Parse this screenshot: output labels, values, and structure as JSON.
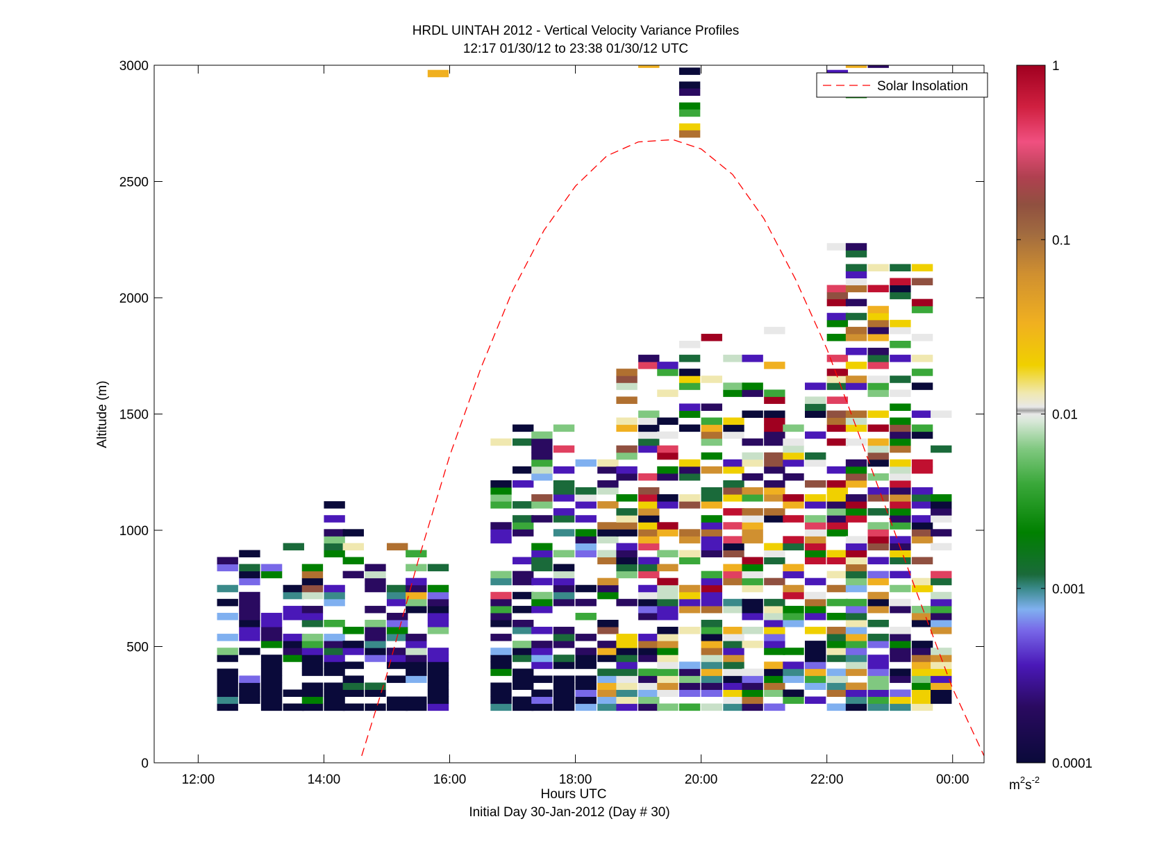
{
  "chart_data": {
    "type": "heatmap",
    "title": "HRDL UINTAH 2012 - Vertical Velocity Variance Profiles",
    "subtitle": "12:17 01/30/12 to 23:38 01/30/12  UTC",
    "xlabel": "Hours UTC",
    "xlabel2": "Initial Day 30-Jan-2012 (Day # 30)",
    "ylabel": "Altitude (m)",
    "xlim": [
      11.3,
      24.5
    ],
    "ylim": [
      0,
      3000
    ],
    "x_ticks": [
      {
        "value": 12,
        "label": "12:00"
      },
      {
        "value": 14,
        "label": "14:00"
      },
      {
        "value": 16,
        "label": "16:00"
      },
      {
        "value": 18,
        "label": "18:00"
      },
      {
        "value": 20,
        "label": "20:00"
      },
      {
        "value": 22,
        "label": "22:00"
      },
      {
        "value": 24,
        "label": "00:00"
      }
    ],
    "y_ticks": [
      {
        "value": 0,
        "label": "0"
      },
      {
        "value": 500,
        "label": "500"
      },
      {
        "value": 1000,
        "label": "1000"
      },
      {
        "value": 1500,
        "label": "1500"
      },
      {
        "value": 2000,
        "label": "2000"
      },
      {
        "value": 2500,
        "label": "2500"
      },
      {
        "value": 3000,
        "label": "3000"
      }
    ],
    "profile_start_hours": [
      12.3,
      12.65,
      13.0,
      13.35,
      13.65,
      14.0,
      14.3,
      14.65,
      15.0,
      15.3,
      15.65,
      16.65,
      17.0,
      17.3,
      17.65,
      18.0,
      18.35,
      18.65,
      19.0,
      19.3,
      19.65,
      20.0,
      20.35,
      20.65,
      21.0,
      21.3,
      21.65,
      22.0,
      22.3,
      22.65,
      23.0,
      23.35,
      23.65
    ],
    "profile_top_altitudes_m": [
      880,
      910,
      910,
      970,
      880,
      1120,
      1040,
      880,
      970,
      1000,
      880,
      1390,
      1450,
      1420,
      1510,
      1300,
      1300,
      1750,
      1750,
      1750,
      1850,
      1870,
      1750,
      1750,
      1850,
      1550,
      1610,
      2260,
      2230,
      2160,
      2140,
      2140,
      1600
    ],
    "range_gate_m": 30,
    "colorbar": {
      "scale": "log",
      "range": [
        0.0001,
        1
      ],
      "tick_labels": [
        "0.0001",
        "0.001",
        "0.01",
        "0.1",
        "1"
      ],
      "unit_base": "m",
      "unit_sup1": "2",
      "unit_mid": "s",
      "unit_sup2": "-2"
    },
    "series": [
      {
        "name": "Solar Insolation",
        "style": "dashed",
        "color": "#ff0000",
        "peak_hour": 19.55,
        "peak_altitude_m": 2680,
        "x": [
          14.6,
          15.0,
          15.5,
          16.0,
          16.5,
          17.0,
          17.5,
          18.0,
          18.5,
          19.0,
          19.55,
          20.0,
          20.5,
          21.0,
          21.5,
          22.0,
          22.5,
          23.0,
          23.5,
          24.0,
          24.5
        ],
        "y": [
          30,
          380,
          870,
          1320,
          1700,
          2030,
          2290,
          2480,
          2610,
          2670,
          2680,
          2640,
          2530,
          2340,
          2080,
          1780,
          1420,
          1050,
          680,
          320,
          30
        ]
      }
    ],
    "legend": {
      "position": "top-right",
      "entries": [
        "Solar Insolation"
      ]
    },
    "colors": {
      "background": "#ffffff",
      "axes": "#000000",
      "insolation_line": "#ff0000",
      "colormap": [
        "#0a0a3a",
        "#2a0a60",
        "#4a18b8",
        "#7868e8",
        "#80b0f0",
        "#3a8a8a",
        "#1a6a3a",
        "#008000",
        "#3aa83a",
        "#80c880",
        "#c8e0c8",
        "#e8e8e8",
        "#f0e8b0",
        "#f0d000",
        "#f0b020",
        "#d09030",
        "#b07030",
        "#905040",
        "#e04060",
        "#c01030",
        "#a00020"
      ]
    }
  }
}
